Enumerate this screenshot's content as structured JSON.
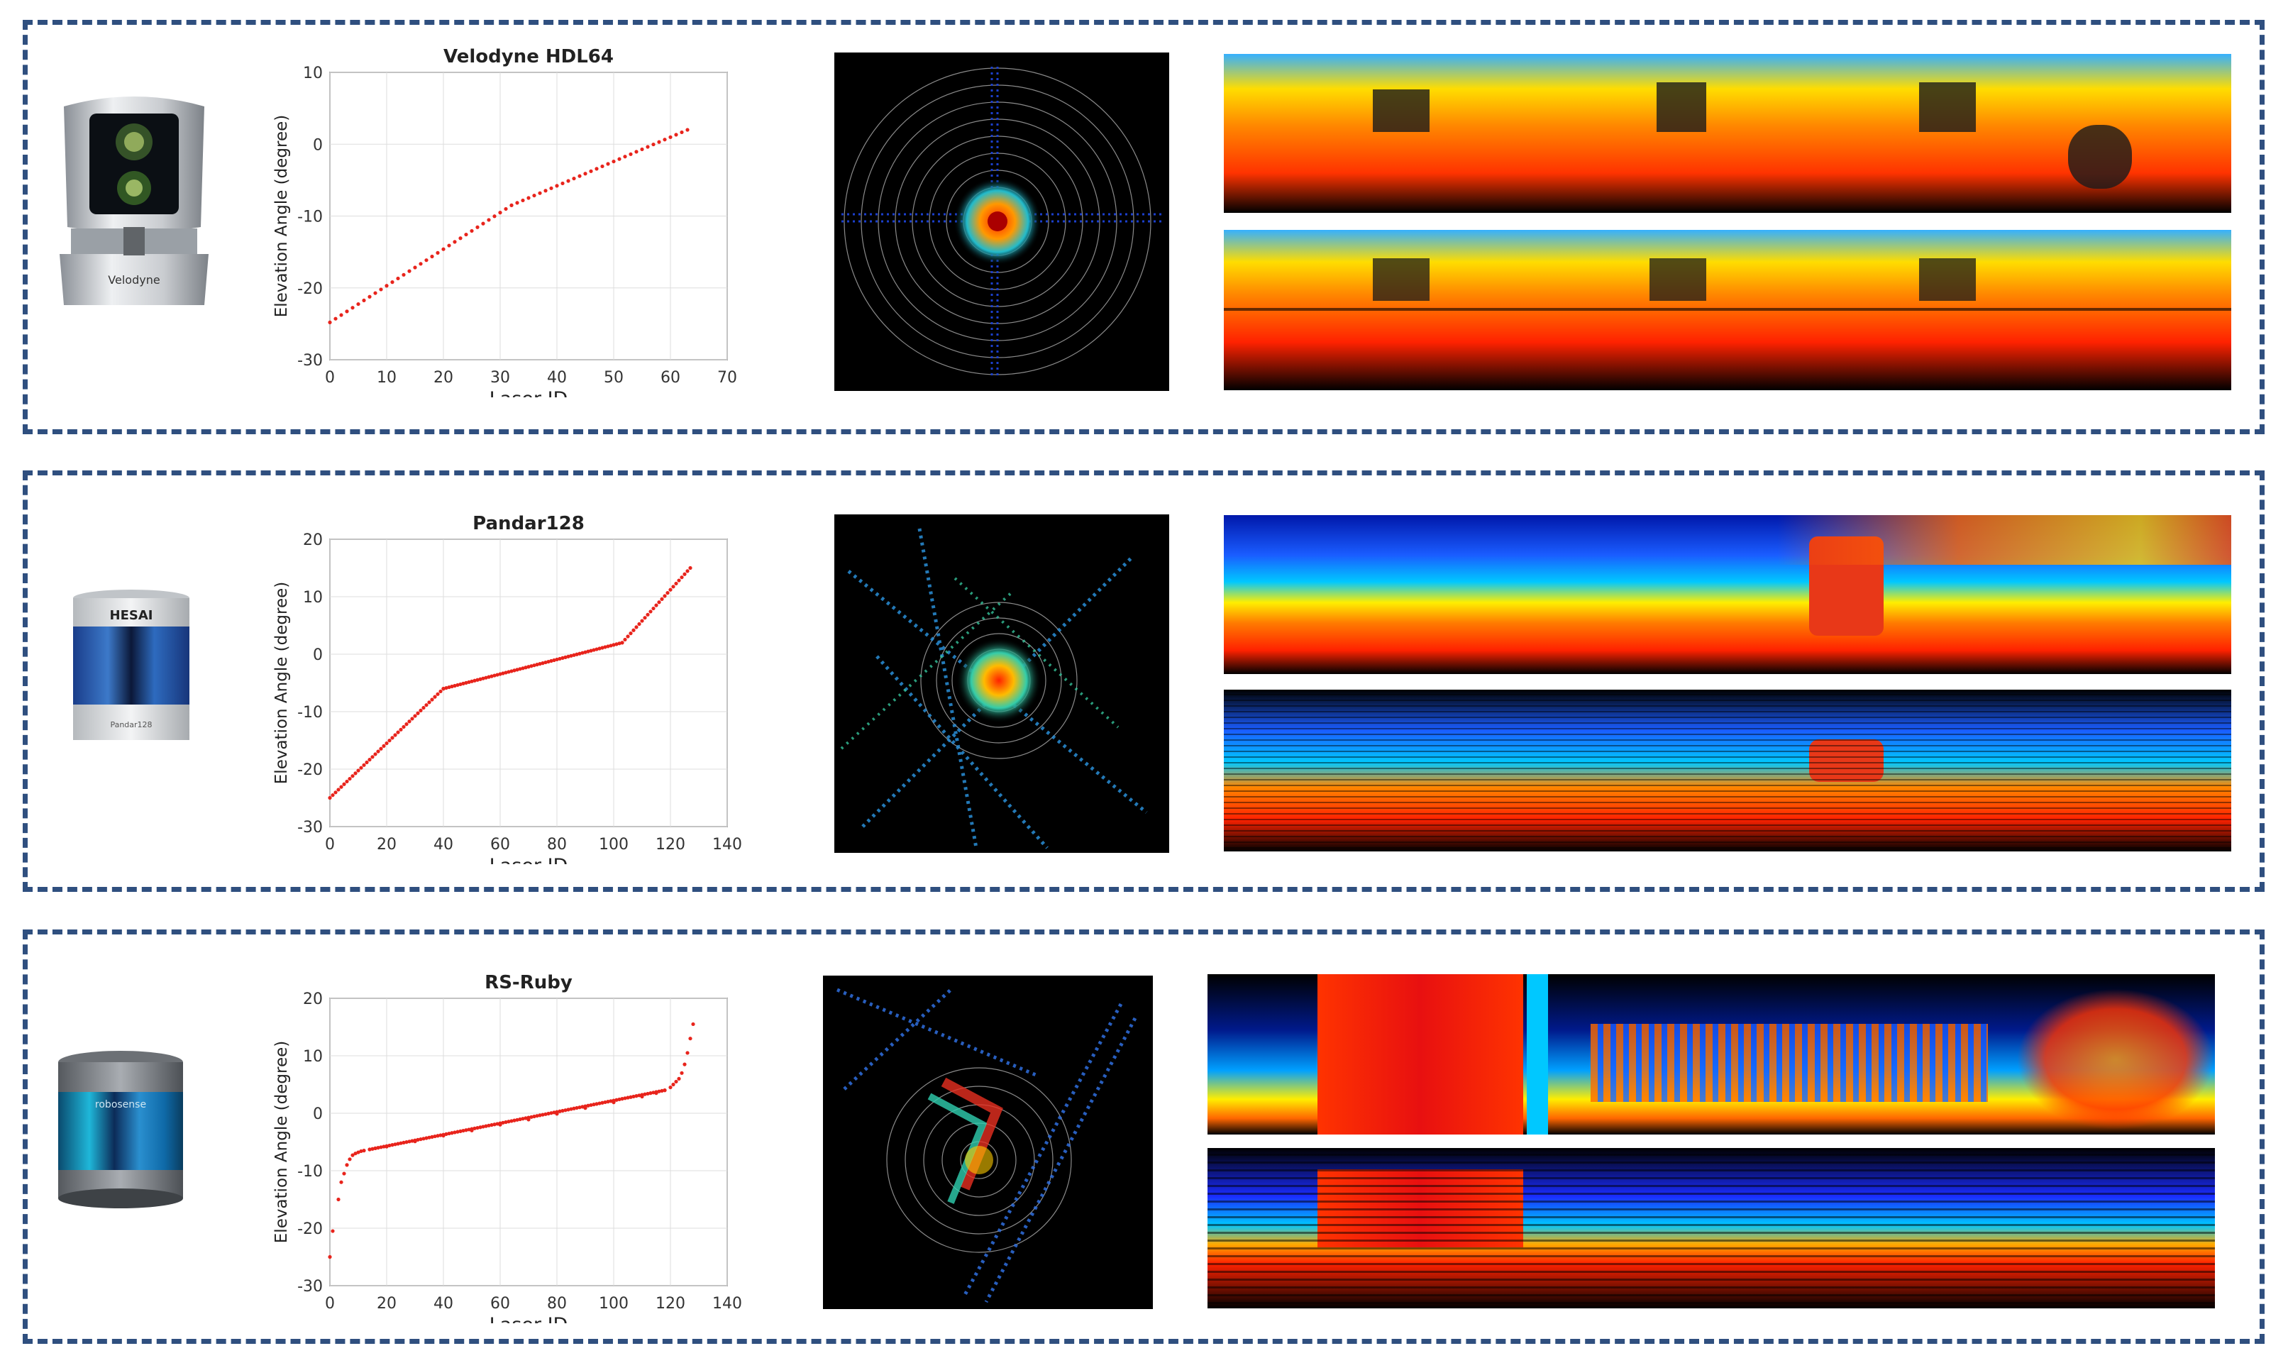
{
  "colors": {
    "panel_border": "#2f4f7f",
    "points": "#e8241c",
    "axis": "#333333",
    "grid": "#dddddd"
  },
  "rows": [
    {
      "sensor_name": "Velodyne HDL64",
      "sensor_brand_label": "Velodyne",
      "icon": "lidar-sensor-velodyne-icon",
      "chart_data": {
        "type": "scatter",
        "title": "Velodyne HDL64",
        "xlabel": "Laser ID",
        "ylabel": "Elevation Angle (degree)",
        "xlim": [
          0,
          70
        ],
        "ylim": [
          -30,
          10
        ],
        "xticks": [
          "0",
          "10",
          "20",
          "30",
          "40",
          "50",
          "60",
          "70"
        ],
        "yticks": [
          "10",
          "0",
          "-10",
          "-20",
          "-30"
        ],
        "grid": true,
        "marker_color": "#e8241c",
        "piecewise_linear": [
          {
            "x": [
              0,
              32
            ],
            "y": [
              -24.8,
              -8.5
            ]
          },
          {
            "x": [
              32,
              63
            ],
            "y": [
              -8.5,
              2.0
            ]
          }
        ]
      }
    },
    {
      "sensor_name": "Pandar128",
      "sensor_brand_label": "HESAI",
      "sensor_model_label": "Pandar128",
      "icon": "lidar-sensor-hesai-icon",
      "chart_data": {
        "type": "scatter",
        "title": "Pandar128",
        "xlabel": "Laser ID",
        "ylabel": "Elevation Angle (degree)",
        "xlim": [
          0,
          140
        ],
        "ylim": [
          -30,
          20
        ],
        "xticks": [
          "0",
          "20",
          "40",
          "60",
          "80",
          "100",
          "120",
          "140"
        ],
        "yticks": [
          "20",
          "10",
          "0",
          "-10",
          "-20",
          "-30"
        ],
        "grid": true,
        "marker_color": "#e8241c",
        "piecewise_linear": [
          {
            "x": [
              0,
              40
            ],
            "y": [
              -25,
              -6
            ]
          },
          {
            "x": [
              40,
              103
            ],
            "y": [
              -6,
              2
            ]
          },
          {
            "x": [
              103,
              127
            ],
            "y": [
              2,
              15
            ]
          }
        ]
      }
    },
    {
      "sensor_name": "RS-Ruby",
      "sensor_brand_label": "robosense",
      "icon": "lidar-sensor-robosense-icon",
      "chart_data": {
        "type": "scatter",
        "title": "RS-Ruby",
        "xlabel": "Laser ID",
        "ylabel": "Elevation Angle (degree)",
        "xlim": [
          0,
          140
        ],
        "ylim": [
          -30,
          20
        ],
        "xticks": [
          "0",
          "20",
          "40",
          "60",
          "80",
          "100",
          "120",
          "140"
        ],
        "yticks": [
          "20",
          "10",
          "0",
          "-10",
          "-20",
          "-30"
        ],
        "grid": true,
        "marker_color": "#e8241c",
        "points": [
          [
            0,
            -25
          ],
          [
            1,
            -20.5
          ],
          [
            3,
            -15
          ],
          [
            4,
            -12
          ],
          [
            5,
            -10.5
          ],
          [
            6,
            -9
          ],
          [
            7,
            -8
          ],
          [
            8,
            -7.3
          ],
          [
            9,
            -7
          ],
          [
            10,
            -6.8
          ],
          [
            11,
            -6.6
          ],
          [
            12,
            -6.5
          ],
          [
            14,
            -6.3
          ],
          [
            16,
            -6.1
          ],
          [
            20,
            -5.8
          ],
          [
            30,
            -4.9
          ],
          [
            40,
            -3.9
          ],
          [
            50,
            -3.0
          ],
          [
            60,
            -2.0
          ],
          [
            70,
            -1.1
          ],
          [
            80,
            -0.1
          ],
          [
            90,
            0.9
          ],
          [
            100,
            1.9
          ],
          [
            110,
            2.9
          ],
          [
            115,
            3.5
          ],
          [
            118,
            4.0
          ],
          [
            120,
            4.5
          ],
          [
            121,
            5.0
          ],
          [
            122,
            5.5
          ],
          [
            123,
            6.0
          ],
          [
            124,
            7.0
          ],
          [
            125,
            8.5
          ],
          [
            126,
            10.5
          ],
          [
            127,
            13
          ],
          [
            128,
            15.5
          ]
        ],
        "dense_segment": {
          "x": [
            14,
            118
          ],
          "y": [
            -6.3,
            4.0
          ]
        }
      }
    }
  ]
}
